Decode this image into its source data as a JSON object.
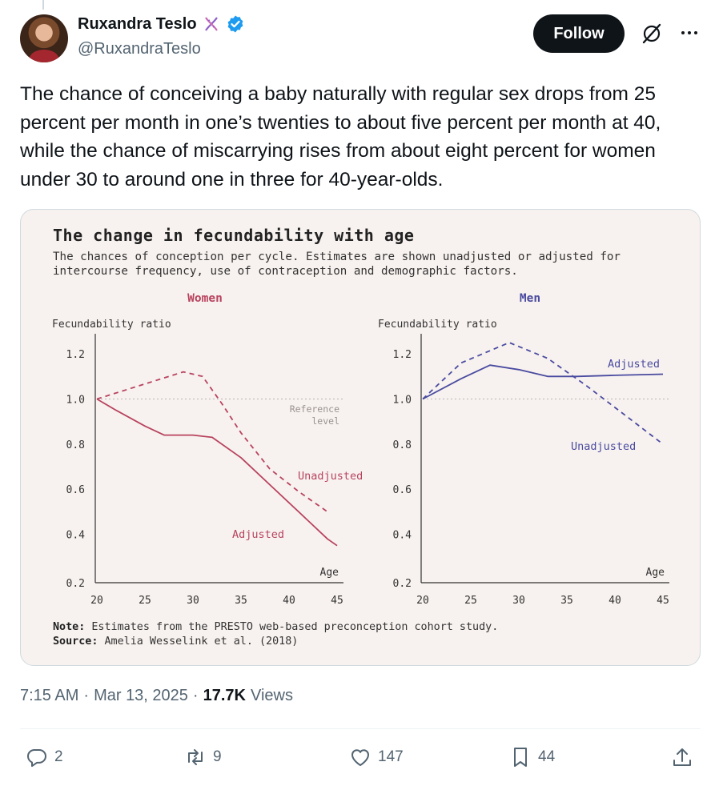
{
  "author": {
    "display_name": "Ruxandra Teslo",
    "handle": "@RuxandraTeslo"
  },
  "follow_label": "Follow",
  "tweet_text": "The chance of conceiving a baby naturally with regular sex drops from 25 percent per month in one’s twenties to about five percent per month at 40, while the chance of miscarrying rises from about eight percent for women under 30 to around one in three for 40-year-olds.",
  "chart_data": {
    "type": "line",
    "title": "The change in fecundability with age",
    "subtitle": "The chances of conception per cycle. Estimates are shown unadjusted or adjusted for intercourse frequency, use of contraception and demographic factors.",
    "xlabel": "Age",
    "ylabel": "Fecundability ratio",
    "xlim": [
      20,
      45
    ],
    "ylim": [
      0.2,
      1.25
    ],
    "x_ticks": [
      "20",
      "25",
      "30",
      "35",
      "40",
      "45"
    ],
    "y_ticks": [
      "1.2",
      "1.0",
      "0.8",
      "0.6",
      "0.4",
      "0.2"
    ],
    "reference_label": "Reference level",
    "reference_value": 1.0,
    "panels": [
      {
        "name": "Women",
        "color": "#b8435e",
        "series": [
          {
            "name": "Unadjusted",
            "style": "dashed",
            "points": [
              [
                20,
                1.0
              ],
              [
                23,
                1.04
              ],
              [
                26,
                1.08
              ],
              [
                29,
                1.12
              ],
              [
                31,
                1.1
              ],
              [
                33,
                0.98
              ],
              [
                35,
                0.85
              ],
              [
                38,
                0.69
              ],
              [
                41,
                0.59
              ],
              [
                44,
                0.5
              ]
            ]
          },
          {
            "name": "Adjusted",
            "style": "solid",
            "points": [
              [
                20,
                1.0
              ],
              [
                22,
                0.95
              ],
              [
                25,
                0.88
              ],
              [
                27,
                0.84
              ],
              [
                30,
                0.84
              ],
              [
                32,
                0.83
              ],
              [
                35,
                0.74
              ],
              [
                38,
                0.62
              ],
              [
                41,
                0.5
              ],
              [
                44,
                0.38
              ],
              [
                45,
                0.35
              ]
            ]
          }
        ]
      },
      {
        "name": "Men",
        "color": "#4a4aa0",
        "series": [
          {
            "name": "Adjusted",
            "style": "solid",
            "points": [
              [
                20,
                1.0
              ],
              [
                24,
                1.09
              ],
              [
                27,
                1.15
              ],
              [
                30,
                1.13
              ],
              [
                33,
                1.1
              ],
              [
                36,
                1.1
              ],
              [
                40,
                1.105
              ],
              [
                45,
                1.11
              ]
            ]
          },
          {
            "name": "Unadjusted",
            "style": "dashed",
            "points": [
              [
                20,
                1.0
              ],
              [
                24,
                1.16
              ],
              [
                29,
                1.25
              ],
              [
                33,
                1.18
              ],
              [
                37,
                1.06
              ],
              [
                41,
                0.93
              ],
              [
                45,
                0.8
              ]
            ]
          }
        ]
      }
    ],
    "note_label": "Note:",
    "note": "Estimates from the PRESTO web-based preconception cohort study.",
    "source_label": "Source:",
    "source": "Amelia Wesselink et al. (2018)"
  },
  "meta": {
    "time": "7:15 AM",
    "separator": "·",
    "date": "Mar 13, 2025",
    "views_count": "17.7K",
    "views_label": "Views"
  },
  "actions": {
    "replies": "2",
    "reposts": "9",
    "likes": "147",
    "bookmarks": "44"
  }
}
